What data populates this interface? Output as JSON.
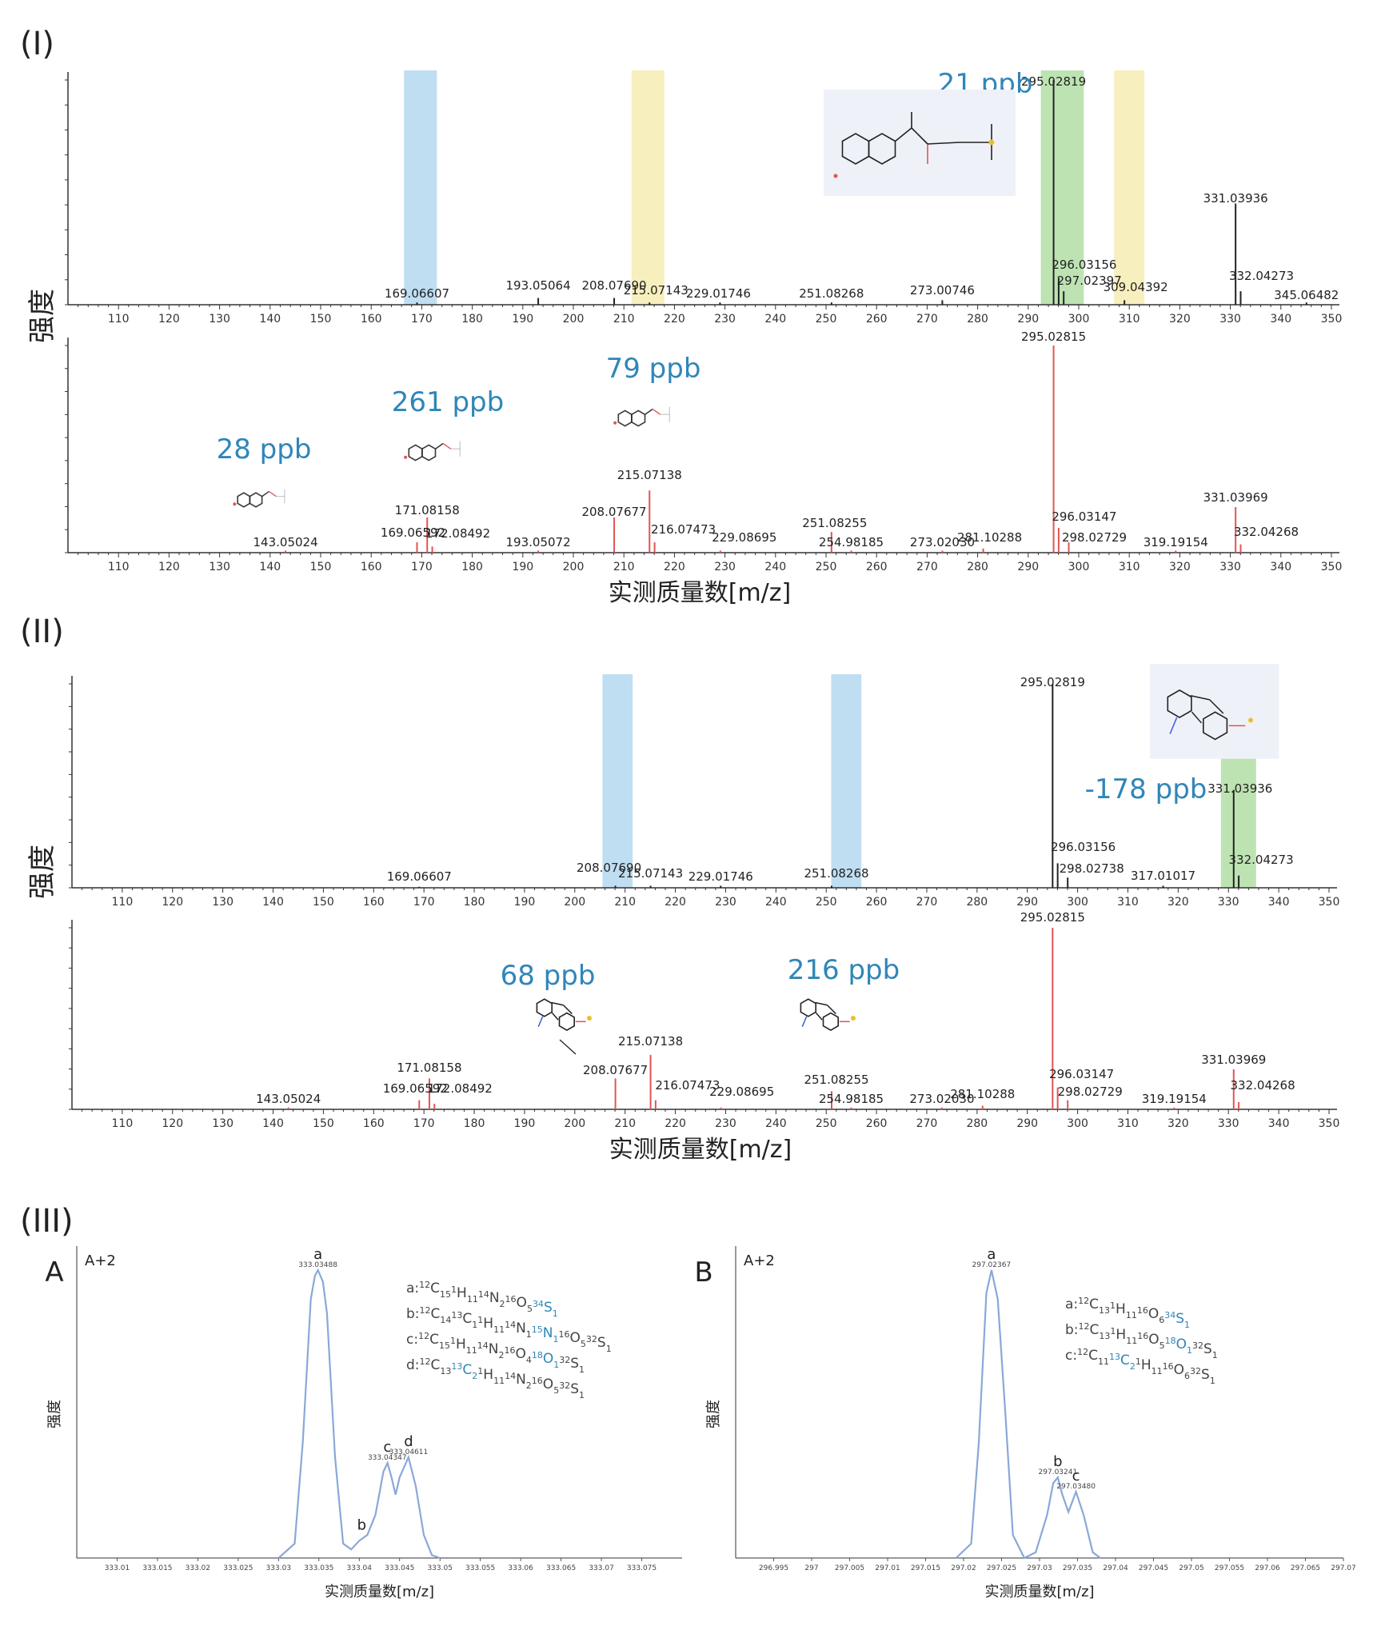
{
  "sections": [
    {
      "label": "(I)"
    },
    {
      "label": "(II)"
    },
    {
      "label": "(III)"
    }
  ],
  "axis_texts": {
    "intensity": "强度",
    "mz_label": "实测质量数[m/z]"
  },
  "colors": {
    "experimental": "#222222",
    "theoretical": "#e05555",
    "ppb_text": "#2f86b8",
    "highlight_green": "#a8d99a",
    "highlight_blue": "#a9d3ee",
    "highlight_yellow": "#f5eaa8",
    "iso_line": "#8aa8d8"
  },
  "ppb_labels": {
    "I_top": "21 ppb",
    "I_b1": "28 ppb",
    "I_b2": "261 ppb",
    "I_b3": "79 ppb",
    "II_top": "-178 ppb",
    "II_b1": "68 ppb",
    "II_b2": "216 ppb"
  },
  "chart_data": [
    {
      "id": "I-top",
      "type": "bar",
      "panel": "(I) experimental",
      "xlim": [
        100,
        350
      ],
      "xticks": [
        110,
        120,
        130,
        140,
        150,
        160,
        170,
        180,
        190,
        200,
        210,
        220,
        230,
        240,
        250,
        260,
        270,
        280,
        290,
        300,
        310,
        320,
        330,
        340,
        350
      ],
      "ylabel": "强度",
      "highlights": [
        {
          "from": 166.5,
          "to": 173,
          "color": "blue"
        },
        {
          "from": 211.5,
          "to": 218,
          "color": "yellow"
        },
        {
          "from": 292.5,
          "to": 301,
          "color": "green"
        },
        {
          "from": 307,
          "to": 313,
          "color": "yellow"
        }
      ],
      "peaks": [
        {
          "mz": 169.06607,
          "label": "169.06607",
          "rel": 0.01
        },
        {
          "mz": 193.05064,
          "label": "193.05064",
          "rel": 0.03
        },
        {
          "mz": 208.0769,
          "label": "208.07690",
          "rel": 0.03
        },
        {
          "mz": 215.07143,
          "label": "215.07143",
          "rel": 0.01
        },
        {
          "mz": 229.01746,
          "label": "229.01746",
          "rel": 0.01
        },
        {
          "mz": 251.08268,
          "label": "251.08268",
          "rel": 0.01
        },
        {
          "mz": 273.00746,
          "label": "273.00746",
          "rel": 0.02
        },
        {
          "mz": 295.02819,
          "label": "295.02819",
          "rel": 1.0
        },
        {
          "mz": 296.03156,
          "label": "296.03156",
          "rel": 0.12
        },
        {
          "mz": 297.02397,
          "label": "297.02397",
          "rel": 0.06
        },
        {
          "mz": 309.04392,
          "label": "309.04392",
          "rel": 0.02
        },
        {
          "mz": 331.03936,
          "label": "331.03936",
          "rel": 0.45
        },
        {
          "mz": 332.04273,
          "label": "332.04273",
          "rel": 0.06
        },
        {
          "mz": 345.06482,
          "label": "345.06482",
          "rel": 0.01
        }
      ]
    },
    {
      "id": "I-bottom",
      "type": "bar",
      "panel": "(I) theoretical",
      "xlim": [
        100,
        350
      ],
      "xticks": [
        110,
        120,
        130,
        140,
        150,
        160,
        170,
        180,
        190,
        200,
        210,
        220,
        230,
        240,
        250,
        260,
        270,
        280,
        290,
        300,
        310,
        320,
        330,
        340,
        350
      ],
      "xlabel": "实测质量数[m/z]",
      "peaks": [
        {
          "mz": 143.05024,
          "label": "143.05024",
          "rel": 0.01
        },
        {
          "mz": 169.06592,
          "label": "169.06592",
          "rel": 0.05
        },
        {
          "mz": 171.08158,
          "label": "171.08158",
          "rel": 0.17
        },
        {
          "mz": 172.08492,
          "label": "172.08492",
          "rel": 0.03
        },
        {
          "mz": 193.05072,
          "label": "193.05072",
          "rel": 0.01
        },
        {
          "mz": 208.07677,
          "label": "208.07677",
          "rel": 0.17
        },
        {
          "mz": 215.07138,
          "label": "215.07138",
          "rel": 0.3
        },
        {
          "mz": 216.07473,
          "label": "216.07473",
          "rel": 0.05
        },
        {
          "mz": 229.08695,
          "label": "229.08695",
          "rel": 0.01
        },
        {
          "mz": 251.08255,
          "label": "251.08255",
          "rel": 0.1
        },
        {
          "mz": 254.98185,
          "label": "254.98185",
          "rel": 0.01
        },
        {
          "mz": 273.0203,
          "label": "273.02030",
          "rel": 0.01
        },
        {
          "mz": 281.10288,
          "label": "281.10288",
          "rel": 0.02
        },
        {
          "mz": 295.02815,
          "label": "295.02815",
          "rel": 1.0
        },
        {
          "mz": 296.03147,
          "label": "296.03147",
          "rel": 0.12
        },
        {
          "mz": 298.02729,
          "label": "298.02729",
          "rel": 0.05
        },
        {
          "mz": 319.19154,
          "label": "319.19154",
          "rel": 0.01
        },
        {
          "mz": 331.03969,
          "label": "331.03969",
          "rel": 0.22
        },
        {
          "mz": 332.04268,
          "label": "332.04268",
          "rel": 0.04
        }
      ]
    },
    {
      "id": "II-top",
      "type": "bar",
      "panel": "(II) experimental",
      "xlim": [
        100,
        350
      ],
      "xticks": [
        110,
        120,
        130,
        140,
        150,
        160,
        170,
        180,
        190,
        200,
        210,
        220,
        230,
        240,
        250,
        260,
        270,
        280,
        290,
        300,
        310,
        320,
        330,
        340,
        350
      ],
      "ylabel": "强度",
      "highlights": [
        {
          "from": 205.5,
          "to": 211.5,
          "color": "blue"
        },
        {
          "from": 251,
          "to": 257,
          "color": "blue"
        },
        {
          "from": 328.5,
          "to": 335.5,
          "color": "green"
        }
      ],
      "peaks": [
        {
          "mz": 169.06607,
          "label": "169.06607",
          "rel": 0.005
        },
        {
          "mz": 208.0769,
          "label": "208.07690",
          "rel": 0.01
        },
        {
          "mz": 215.07143,
          "label": "215.07143",
          "rel": 0.01
        },
        {
          "mz": 229.01746,
          "label": "229.01746",
          "rel": 0.01
        },
        {
          "mz": 251.08268,
          "label": "251.08268",
          "rel": 0.01
        },
        {
          "mz": 295.02819,
          "label": "295.02819",
          "rel": 1.0
        },
        {
          "mz": 296.03156,
          "label": "296.03156",
          "rel": 0.12
        },
        {
          "mz": 298.02738,
          "label": "298.02738",
          "rel": 0.05
        },
        {
          "mz": 317.01017,
          "label": "317.01017",
          "rel": 0.01
        },
        {
          "mz": 331.03936,
          "label": "331.03936",
          "rel": 0.48
        },
        {
          "mz": 332.04273,
          "label": "332.04273",
          "rel": 0.06
        }
      ]
    },
    {
      "id": "II-bottom",
      "type": "bar",
      "panel": "(II) theoretical",
      "xlim": [
        100,
        350
      ],
      "xticks": [
        110,
        120,
        130,
        140,
        150,
        160,
        170,
        180,
        190,
        200,
        210,
        220,
        230,
        240,
        250,
        260,
        270,
        280,
        290,
        300,
        310,
        320,
        330,
        340,
        350
      ],
      "xlabel": "实测质量数[m/z]",
      "peaks": [
        {
          "mz": 143.05024,
          "label": "143.05024",
          "rel": 0.01
        },
        {
          "mz": 169.06592,
          "label": "169.06592",
          "rel": 0.05
        },
        {
          "mz": 171.08158,
          "label": "171.08158",
          "rel": 0.17
        },
        {
          "mz": 172.08492,
          "label": "172.08492",
          "rel": 0.03
        },
        {
          "mz": 208.07677,
          "label": "208.07677",
          "rel": 0.17
        },
        {
          "mz": 215.07138,
          "label": "215.07138",
          "rel": 0.3
        },
        {
          "mz": 216.07473,
          "label": "216.07473",
          "rel": 0.05
        },
        {
          "mz": 229.08695,
          "label": "229.08695",
          "rel": 0.01
        },
        {
          "mz": 251.08255,
          "label": "251.08255",
          "rel": 0.1
        },
        {
          "mz": 254.98185,
          "label": "254.98185",
          "rel": 0.01
        },
        {
          "mz": 273.0203,
          "label": "273.02030",
          "rel": 0.01
        },
        {
          "mz": 281.10288,
          "label": "281.10288",
          "rel": 0.02
        },
        {
          "mz": 295.02815,
          "label": "295.02815",
          "rel": 1.0
        },
        {
          "mz": 296.03147,
          "label": "296.03147",
          "rel": 0.12
        },
        {
          "mz": 298.02729,
          "label": "298.02729",
          "rel": 0.05
        },
        {
          "mz": 319.19154,
          "label": "319.19154",
          "rel": 0.01
        },
        {
          "mz": 331.03969,
          "label": "331.03969",
          "rel": 0.22
        },
        {
          "mz": 332.04268,
          "label": "332.04268",
          "rel": 0.04
        }
      ]
    },
    {
      "id": "III-A",
      "type": "line",
      "panel_letter": "A",
      "tag": "A+2",
      "xlim": [
        333.005,
        333.08
      ],
      "xticks": [
        "333.01",
        "333.015",
        "333.02",
        "333.025",
        "333.03",
        "333.035",
        "333.04",
        "333.045",
        "333.05",
        "333.055",
        "333.06",
        "333.065",
        "333.07",
        "333.075"
      ],
      "xlabel": "实测质量数[m/z]",
      "ylabel": "强度",
      "peak_labels": [
        {
          "letter": "a",
          "x": 333.03488,
          "y": 1.0,
          "value": "333.03488"
        },
        {
          "letter": "b",
          "x": 333.0403,
          "y": 0.06,
          "value": ""
        },
        {
          "letter": "c",
          "x": 333.04347,
          "y": 0.33,
          "value": "333.04347"
        },
        {
          "letter": "d",
          "x": 333.04611,
          "y": 0.35,
          "value": "333.04611"
        }
      ],
      "x": [
        333.03,
        333.032,
        333.033,
        333.034,
        333.0345,
        333.03488,
        333.0355,
        333.036,
        333.037,
        333.038,
        333.039,
        333.04,
        333.041,
        333.042,
        333.043,
        333.0435,
        333.044,
        333.0445,
        333.045,
        333.0461,
        333.047,
        333.048,
        333.049,
        333.05
      ],
      "y": [
        0.0,
        0.05,
        0.4,
        0.9,
        0.98,
        1.0,
        0.96,
        0.85,
        0.35,
        0.05,
        0.03,
        0.06,
        0.08,
        0.15,
        0.3,
        0.33,
        0.28,
        0.22,
        0.28,
        0.35,
        0.25,
        0.08,
        0.01,
        0.0
      ],
      "assignments": [
        {
          "label": "a:",
          "formula": "12C15 1H11 14N2 16O5 34S1"
        },
        {
          "label": "b:",
          "formula": "12C14 13C1 1H11 14N1 15N1 16O5 32S1"
        },
        {
          "label": "c:",
          "formula": "12C15 1H11 14N2 16O4 18O1 32S1"
        },
        {
          "label": "d:",
          "formula": "12C13 13C2 1H11 14N2 16O5 32S1"
        }
      ]
    },
    {
      "id": "III-B",
      "type": "line",
      "panel_letter": "B",
      "tag": "A+2",
      "xlim": [
        296.99,
        297.07
      ],
      "xticks": [
        "296.995",
        "297",
        "297.005",
        "297.01",
        "297.015",
        "297.02",
        "297.025",
        "297.03",
        "297.035",
        "297.04",
        "297.045",
        "297.05",
        "297.055",
        "297.06",
        "297.065",
        "297.07"
      ],
      "xlabel": "实测质量数[m/z]",
      "ylabel": "强度",
      "peak_labels": [
        {
          "letter": "a",
          "x": 297.02367,
          "y": 1.0,
          "value": "297.02367"
        },
        {
          "letter": "b",
          "x": 297.03241,
          "y": 0.28,
          "value": "297.03241"
        },
        {
          "letter": "c",
          "x": 297.0348,
          "y": 0.23,
          "value": "297.03480"
        }
      ],
      "x": [
        297.019,
        297.021,
        297.022,
        297.023,
        297.02367,
        297.0245,
        297.0255,
        297.0265,
        297.028,
        297.0295,
        297.031,
        297.0318,
        297.03241,
        297.033,
        297.0338,
        297.0348,
        297.0358,
        297.037,
        297.038
      ],
      "y": [
        0.0,
        0.05,
        0.4,
        0.92,
        1.0,
        0.9,
        0.5,
        0.08,
        0.0,
        0.02,
        0.15,
        0.26,
        0.28,
        0.22,
        0.16,
        0.23,
        0.15,
        0.02,
        0.0
      ],
      "assignments": [
        {
          "label": "a:",
          "formula": "12C13 1H11 16O6 34S1"
        },
        {
          "label": "b:",
          "formula": "12C13 1H11 16O5 18O1 32S1"
        },
        {
          "label": "c:",
          "formula": "12C11 13C2 1H11 16O6 32S1"
        }
      ]
    }
  ]
}
